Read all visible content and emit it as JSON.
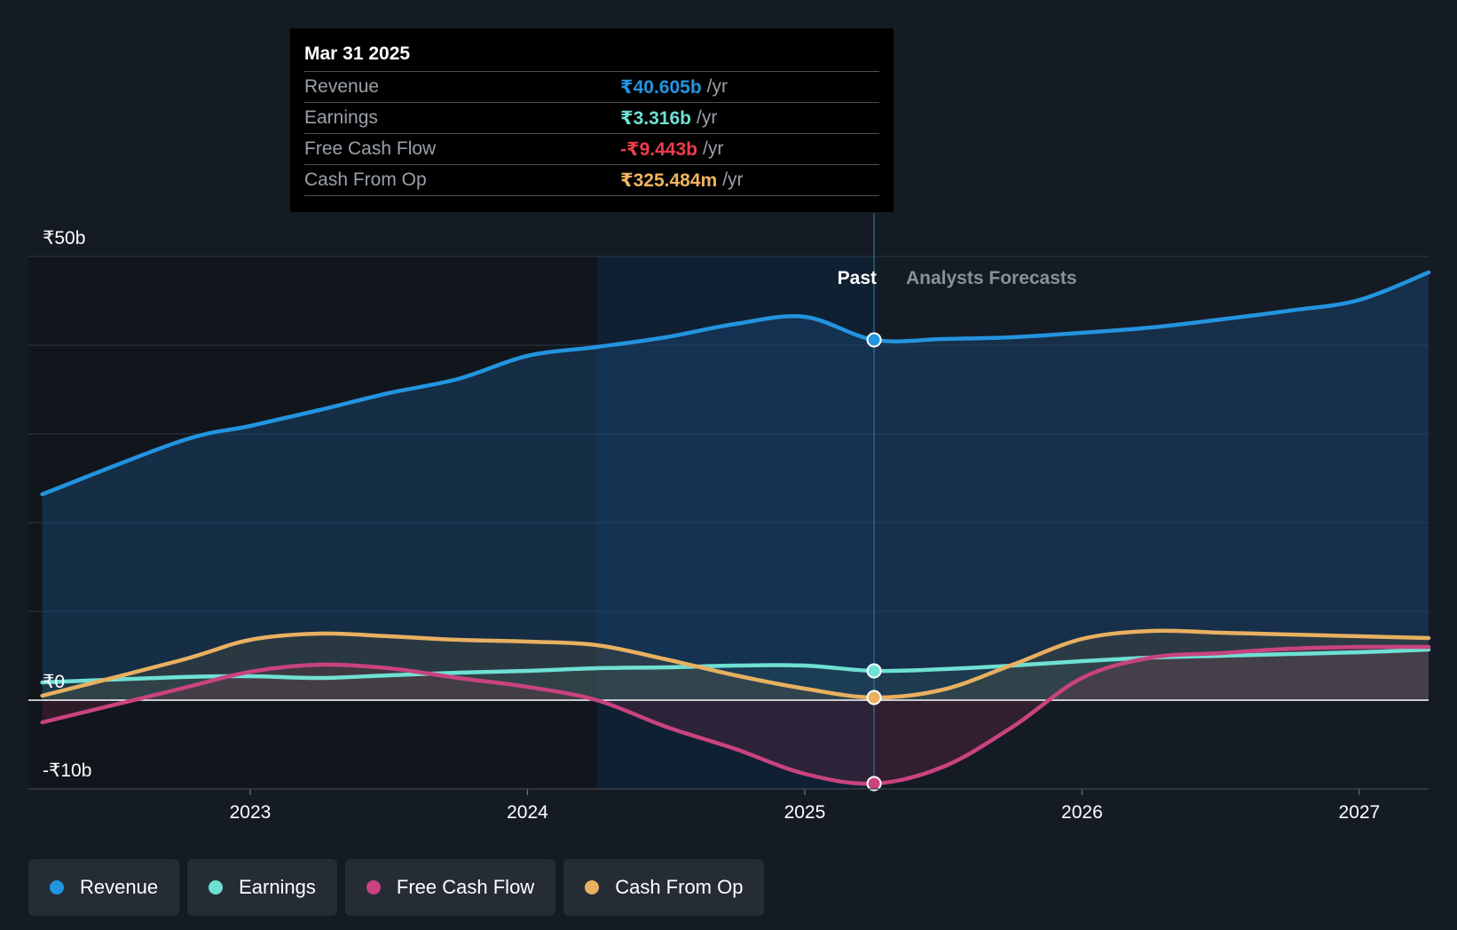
{
  "tooltip": {
    "date": "Mar 31 2025",
    "rows": [
      {
        "label": "Revenue",
        "value": "₹40.605b",
        "unit": "/yr",
        "color": "#2394df"
      },
      {
        "label": "Earnings",
        "value": "₹3.316b",
        "unit": "/yr",
        "color": "#6fe0d4"
      },
      {
        "label": "Free Cash Flow",
        "value": "-₹9.443b",
        "unit": "/yr",
        "color": "#ee3c4b"
      },
      {
        "label": "Cash From Op",
        "value": "₹325.484m",
        "unit": "/yr",
        "color": "#f0b460"
      }
    ]
  },
  "legend": [
    {
      "label": "Revenue",
      "color": "#2394df"
    },
    {
      "label": "Earnings",
      "color": "#6fe0d4"
    },
    {
      "label": "Free Cash Flow",
      "color": "#c9437f"
    },
    {
      "label": "Cash From Op",
      "color": "#e8b060"
    }
  ],
  "chart_data": {
    "type": "line",
    "title": "",
    "y_unit": "₹b",
    "ylim": [
      -10,
      50
    ],
    "xlim": [
      2022.2,
      2027.25
    ],
    "y_tick_labels": [
      {
        "value": 50,
        "label": "₹50b"
      },
      {
        "value": 0,
        "label": "₹0"
      },
      {
        "value": -10,
        "label": "-₹10b"
      }
    ],
    "x_ticks": [
      {
        "value": 2023,
        "label": "2023"
      },
      {
        "value": 2024,
        "label": "2024"
      },
      {
        "value": 2025,
        "label": "2025"
      },
      {
        "value": 2026,
        "label": "2026"
      },
      {
        "value": 2027,
        "label": "2027"
      }
    ],
    "past_label": "Past",
    "forecast_label": "Analysts Forecasts",
    "divider_x": 2025.25,
    "highlight_start_x": 2024.25,
    "series": [
      {
        "name": "Revenue",
        "color": "#2394df",
        "x": [
          2022.25,
          2022.75,
          2023.0,
          2023.25,
          2023.5,
          2023.75,
          2024.0,
          2024.25,
          2024.5,
          2024.75,
          2025.0,
          2025.25,
          2025.5,
          2025.75,
          2026.0,
          2026.25,
          2026.5,
          2026.75,
          2027.0,
          2027.25
        ],
        "values": [
          23.2,
          29.2,
          30.9,
          32.7,
          34.6,
          36.2,
          38.8,
          39.8,
          40.9,
          42.4,
          43.2,
          40.6,
          40.7,
          40.9,
          41.4,
          42.0,
          42.9,
          43.9,
          45.1,
          48.2
        ]
      },
      {
        "name": "Earnings",
        "color": "#6fe0d4",
        "x": [
          2022.25,
          2022.75,
          2023.0,
          2023.25,
          2023.5,
          2023.75,
          2024.0,
          2024.25,
          2024.5,
          2024.75,
          2025.0,
          2025.25,
          2025.5,
          2025.75,
          2026.0,
          2026.25,
          2026.5,
          2026.75,
          2027.0,
          2027.25
        ],
        "values": [
          2.0,
          2.6,
          2.7,
          2.5,
          2.8,
          3.1,
          3.3,
          3.6,
          3.7,
          3.9,
          3.9,
          3.3,
          3.5,
          3.9,
          4.4,
          4.8,
          5.0,
          5.2,
          5.4,
          5.7
        ]
      },
      {
        "name": "Free Cash Flow",
        "color": "#c9437f",
        "x": [
          2022.25,
          2022.75,
          2023.0,
          2023.25,
          2023.5,
          2023.75,
          2024.0,
          2024.25,
          2024.5,
          2024.75,
          2025.0,
          2025.25,
          2025.5,
          2025.75,
          2026.0,
          2026.25,
          2026.5,
          2026.75,
          2027.0,
          2027.25
        ],
        "values": [
          -2.5,
          1.3,
          3.2,
          4.0,
          3.6,
          2.5,
          1.5,
          0.0,
          -3.0,
          -5.5,
          -8.3,
          -9.4,
          -7.5,
          -3.0,
          2.5,
          4.8,
          5.3,
          5.8,
          6.0,
          6.0
        ]
      },
      {
        "name": "Cash From Op",
        "color": "#e8b060",
        "x": [
          2022.25,
          2022.75,
          2023.0,
          2023.25,
          2023.5,
          2023.75,
          2024.0,
          2024.25,
          2024.5,
          2024.75,
          2025.0,
          2025.25,
          2025.5,
          2025.75,
          2026.0,
          2026.25,
          2026.5,
          2026.75,
          2027.0,
          2027.25
        ],
        "values": [
          0.5,
          4.5,
          6.8,
          7.5,
          7.2,
          6.8,
          6.6,
          6.2,
          4.6,
          2.8,
          1.3,
          0.3,
          1.2,
          4.0,
          6.9,
          7.8,
          7.6,
          7.4,
          7.2,
          7.0
        ]
      }
    ]
  }
}
